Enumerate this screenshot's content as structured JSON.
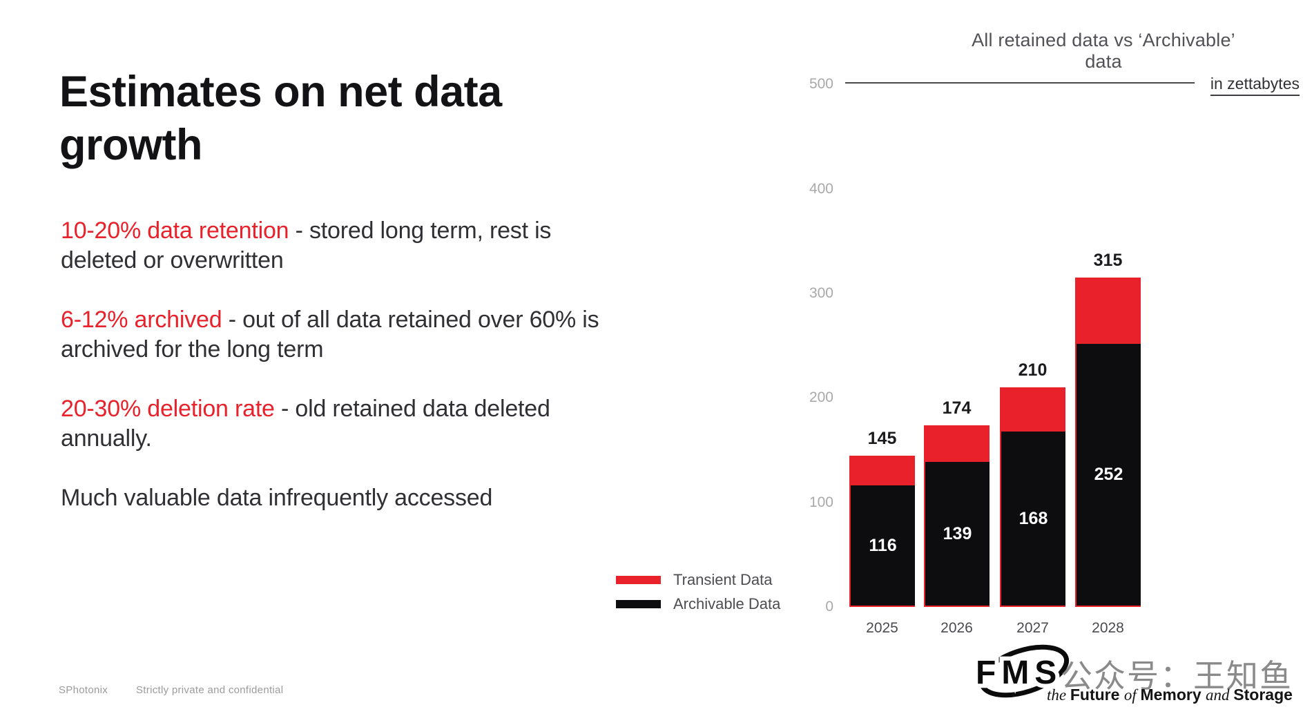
{
  "slide": {
    "title_lines": [
      "Estimates on net data",
      "growth"
    ],
    "bullets": [
      {
        "highlight": "10-20% data retention",
        "rest": " - stored long term, rest is deleted or overwritten"
      },
      {
        "highlight": "6-12% archived",
        "rest": " - out of all data retained over 60% is archived for the long term"
      },
      {
        "highlight": "20-30% deletion rate",
        "rest": " - old retained data deleted annually."
      },
      {
        "highlight": "",
        "rest": "Much valuable data infrequently accessed"
      }
    ],
    "footer": {
      "brand": "SPhotonix",
      "note": "Strictly private and confidential"
    }
  },
  "chart_data": {
    "type": "bar",
    "stacked": true,
    "title": "All retained data vs ‘Archivable’ data",
    "unit_label": "in zettabytes",
    "categories": [
      "2025",
      "2026",
      "2027",
      "2028"
    ],
    "series": [
      {
        "name": "Transient Data",
        "color": "#e8212b",
        "values": [
          29,
          35,
          42,
          63
        ]
      },
      {
        "name": "Archivable Data",
        "color": "#0d0d10",
        "values": [
          116,
          139,
          168,
          252
        ]
      }
    ],
    "totals": [
      145,
      174,
      210,
      315
    ],
    "segment_labels": [
      116,
      139,
      168,
      252
    ],
    "xlabel": "",
    "ylabel": "",
    "ylim": [
      0,
      500
    ],
    "yticks": [
      500,
      400,
      300,
      200,
      100,
      0
    ],
    "gridline_at": [
      500
    ],
    "grid": "only-top-line",
    "legend_position": "bottom-left"
  },
  "branding": {
    "fms_logo_text": "FMS",
    "tagline_parts": [
      {
        "text": "the ",
        "style": "italic"
      },
      {
        "text": "Future ",
        "style": "bold"
      },
      {
        "text": "of ",
        "style": "italic"
      },
      {
        "text": "Memory ",
        "style": "bold"
      },
      {
        "text": "and ",
        "style": "italic"
      },
      {
        "text": "Storage",
        "style": "bold"
      }
    ],
    "watermark": "公众号：王知鱼"
  },
  "colors": {
    "accent_red": "#e8212b",
    "bar_black": "#0d0d10",
    "tick_gray": "#a9a9ac",
    "text_dark": "#2f2f34"
  }
}
